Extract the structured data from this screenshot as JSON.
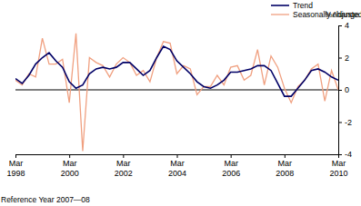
{
  "chart_data": {
    "type": "line",
    "y_label": "%change",
    "footnote": "Reference Year 2007—08",
    "categories": [
      "Mar 1998",
      null,
      null,
      null,
      null,
      null,
      null,
      null,
      "Mar 2000",
      null,
      null,
      null,
      null,
      null,
      null,
      null,
      "Mar 2002",
      null,
      null,
      null,
      null,
      null,
      null,
      null,
      "Mar 2004",
      null,
      null,
      null,
      null,
      null,
      null,
      null,
      "Mar 2006",
      null,
      null,
      null,
      null,
      null,
      null,
      null,
      "Mar 2008",
      null,
      null,
      null,
      null,
      null,
      null,
      null,
      "Mar 2010"
    ],
    "series": [
      {
        "name": "Trend",
        "color": "#000066",
        "values": [
          0.7,
          0.4,
          0.9,
          1.6,
          2.0,
          2.3,
          1.8,
          1.4,
          0.5,
          0.1,
          0.3,
          1.0,
          1.3,
          1.4,
          1.3,
          1.4,
          1.7,
          1.7,
          1.3,
          0.9,
          1.2,
          2.0,
          2.7,
          2.5,
          1.8,
          1.4,
          1.0,
          0.5,
          0.2,
          0.1,
          0.3,
          0.6,
          1.1,
          1.1,
          1.2,
          1.3,
          1.5,
          1.5,
          1.2,
          0.4,
          -0.4,
          -0.4,
          0.1,
          0.6,
          1.2,
          1.3,
          1.1,
          0.8,
          0.6
        ]
      },
      {
        "name": "Seasonally Adjusted",
        "color": "#f0a080",
        "values": [
          0.6,
          0.3,
          1.0,
          0.8,
          3.2,
          1.6,
          1.6,
          1.9,
          -0.8,
          3.5,
          -3.8,
          2.0,
          1.7,
          1.5,
          0.8,
          1.6,
          2.0,
          1.7,
          0.9,
          1.2,
          0.5,
          2.0,
          3.0,
          2.9,
          1.0,
          1.5,
          1.3,
          -0.3,
          0.2,
          0.2,
          0.9,
          0.3,
          1.4,
          1.5,
          0.6,
          0.9,
          2.5,
          0.3,
          2.1,
          1.4,
          0.1,
          -0.8,
          0.2,
          0.6,
          1.3,
          1.6,
          -0.7,
          1.2,
          0.0
        ]
      }
    ],
    "ylim": [
      -4,
      4
    ],
    "yticks": [
      -4,
      -2,
      0,
      2,
      4
    ],
    "grid": false,
    "legend": "upper right"
  }
}
